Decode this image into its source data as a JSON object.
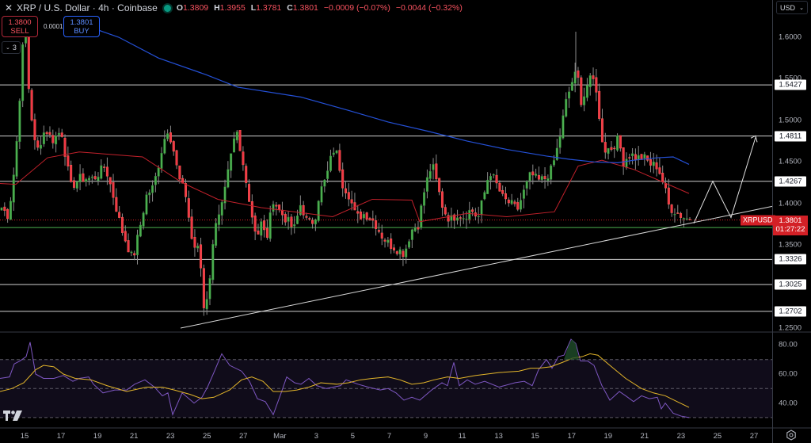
{
  "header": {
    "title": "XRP / U.S. Dollar · 4h · Coinbase",
    "ohlc": [
      {
        "k": "O",
        "v": "1.3809"
      },
      {
        "k": "H",
        "v": "1.3955"
      },
      {
        "k": "L",
        "v": "1.3781"
      },
      {
        "k": "C",
        "v": "1.3801"
      }
    ],
    "change": "−0.0009 (−0.07%)",
    "change2": "−0.0044 (−0.32%)"
  },
  "trade": {
    "sell_price": "1.3800",
    "sell_label": "SELL",
    "spread": "0.0001",
    "buy_price": "1.3801",
    "buy_label": "BUY",
    "collapse_count": "3"
  },
  "axis": {
    "currency": "USD",
    "price_ticks": [
      "1.6000",
      "1.5500",
      "1.5000",
      "1.4500",
      "1.4000",
      "1.3500",
      "1.2500"
    ],
    "rsi_ticks": [
      "80.00",
      "60.00",
      "40.00"
    ],
    "date_ticks": [
      "15",
      "17",
      "19",
      "21",
      "23",
      "25",
      "27",
      "Mar",
      "3",
      "5",
      "7",
      "9",
      "11",
      "13",
      "15",
      "17",
      "19",
      "21",
      "23",
      "25",
      "27"
    ]
  },
  "levels": [
    {
      "price": "1.5427",
      "color": "#ffffff"
    },
    {
      "price": "1.4811",
      "color": "#ffffff"
    },
    {
      "price": "1.4267",
      "color": "#ffffff"
    },
    {
      "price": "1.3710",
      "color": "#4caf50"
    },
    {
      "price": "1.3326",
      "color": "#ffffff"
    },
    {
      "price": "1.3025",
      "color": "#ffffff"
    },
    {
      "price": "1.2702",
      "color": "#ffffff"
    }
  ],
  "last": {
    "symbol": "XRPUSD",
    "price": "1.3801",
    "countdown": "01:27:22"
  },
  "colors": {
    "up": "#4caf50",
    "down": "#f23645",
    "ma_fast": "#c2212b",
    "ma_slow": "#2450d6",
    "rsi": "#7e57c2",
    "rsi_ma": "#e4b62a",
    "level": "#cfcfcf",
    "trend": "#d8d8d8"
  },
  "chart_data": {
    "type": "candlestick",
    "title": "XRP / U.S. Dollar · 4h · Coinbase",
    "ylabel": "USD",
    "ylim": [
      1.25,
      1.62
    ],
    "grid": false,
    "x_ticks": [
      "15",
      "17",
      "19",
      "21",
      "23",
      "25",
      "27",
      "Mar",
      "3",
      "5",
      "7",
      "9",
      "11",
      "13",
      "15",
      "17",
      "19",
      "21",
      "23",
      "25",
      "27"
    ],
    "horizontal_levels": [
      1.5427,
      1.4811,
      1.4267,
      1.371,
      1.3326,
      1.3025,
      1.2702
    ],
    "trendline": {
      "from": {
        "x_date": "22 Feb",
        "price": 1.25
      },
      "to": {
        "x_date": "24 Mar",
        "price": 1.395
      }
    },
    "projection": [
      [
        1.375,
        1.4267
      ],
      [
        1.388,
        1.4811
      ]
    ],
    "last_price": 1.3801,
    "indicators": {
      "ma_short": {
        "color": "red",
        "approx_path": [
          1.424,
          1.423,
          1.455,
          1.462,
          1.456,
          1.425,
          1.405,
          1.395,
          1.384,
          1.405,
          1.404,
          1.378,
          1.388,
          1.384,
          1.39,
          1.445,
          1.452,
          1.441,
          1.412
        ]
      },
      "ma_long": {
        "color": "blue",
        "approx_path": [
          1.62,
          1.6,
          1.575,
          1.555,
          1.54,
          1.528,
          1.512,
          1.498,
          1.487,
          1.475,
          1.465,
          1.457,
          1.453,
          1.45,
          1.449,
          1.452,
          1.455,
          1.456,
          1.447
        ]
      },
      "rsi": {
        "levels": [
          70,
          50,
          30
        ],
        "ylim": [
          25,
          90
        ],
        "last": 31,
        "ma_last": 38
      }
    }
  }
}
